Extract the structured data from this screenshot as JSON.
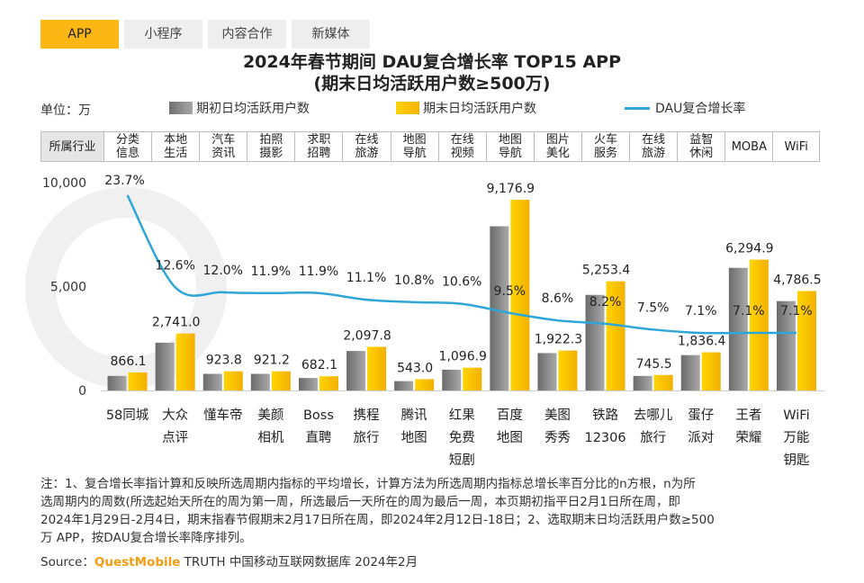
{
  "tabs": [
    "APP",
    "小程序",
    "内容合作",
    "新媒体"
  ],
  "title_line1": "2024年春节期间 DAU复合增长率 TOP15 APP",
  "title_line2": "(期末日均活跃用户数≥500万)",
  "unit": "单位：万",
  "industry_header": "所属行业",
  "colors": {
    "start": "#8a8a8a",
    "end": "#ffc000",
    "line": "#2ea6d8",
    "tab_active": "#fdb714"
  },
  "chart_data": {
    "type": "bar",
    "title": "2024年春节期间 DAU复合增长率 TOP15 APP",
    "ylim": [
      0,
      10000
    ],
    "yticks": [
      "0",
      "5,000",
      "10,000"
    ],
    "categories": [
      "58同城",
      "大众点评",
      "懂车帝",
      "美颜相机",
      "Boss直聘",
      "携程旅行",
      "腾讯地图",
      "红果免费短剧",
      "百度地图",
      "美图秀秀",
      "铁路12306",
      "去哪儿旅行",
      "蛋仔派对",
      "王者荣耀",
      "WiFi万能钥匙"
    ],
    "category_lines": [
      [
        "58同城"
      ],
      [
        "大众",
        "点评"
      ],
      [
        "懂车帝"
      ],
      [
        "美颜",
        "相机"
      ],
      [
        "Boss",
        "直聘"
      ],
      [
        "携程",
        "旅行"
      ],
      [
        "腾讯",
        "地图"
      ],
      [
        "红果",
        "免费",
        "短剧"
      ],
      [
        "百度",
        "地图"
      ],
      [
        "美图",
        "秀秀"
      ],
      [
        "铁路",
        "12306"
      ],
      [
        "去哪儿",
        "旅行"
      ],
      [
        "蛋仔",
        "派对"
      ],
      [
        "王者",
        "荣耀"
      ],
      [
        "WiFi",
        "万能",
        "钥匙"
      ]
    ],
    "industries": [
      "分类\n信息",
      "本地\n生活",
      "汽车\n资讯",
      "拍照\n摄影",
      "求职\n招聘",
      "在线\n旅游",
      "地图\n导航",
      "在线\n视频",
      "地图\n导航",
      "图片\n美化",
      "火车\n服务",
      "在线\n旅游",
      "益智\n休闲",
      "MOBA",
      "WiFi"
    ],
    "series": [
      {
        "name": "期初日均活跃用户数",
        "values": [
          700,
          2300,
          800,
          800,
          600,
          1900,
          450,
          1000,
          7900,
          1800,
          4600,
          700,
          1700,
          5900,
          4300
        ]
      },
      {
        "name": "期末日均活跃用户数",
        "values": [
          866.1,
          2741.0,
          923.8,
          921.2,
          682.1,
          2097.8,
          543.0,
          1096.9,
          9176.9,
          1922.3,
          5253.4,
          745.5,
          1836.4,
          6294.9,
          4786.5
        ]
      }
    ],
    "end_labels": [
      "866.1",
      "2,741.0",
      "923.8",
      "921.2",
      "682.1",
      "2,097.8",
      "543.0",
      "1,096.9",
      "9,176.9",
      "1,922.3",
      "5,253.4",
      "745.5",
      "1,836.4",
      "6,294.9",
      "4,786.5"
    ],
    "growth": {
      "name": "DAU复合增长率",
      "values": [
        23.7,
        12.6,
        12.0,
        11.9,
        11.9,
        11.1,
        10.8,
        10.6,
        9.5,
        8.6,
        8.2,
        7.5,
        7.1,
        7.1,
        7.1
      ],
      "labels": [
        "23.7%",
        "12.6%",
        "12.0%",
        "11.9%",
        "11.9%",
        "11.1%",
        "10.8%",
        "10.6%",
        "9.5%",
        "8.6%",
        "8.2%",
        "7.5%",
        "7.1%",
        "7.1%",
        "7.1%"
      ]
    }
  },
  "note_lines": [
    "注：1、复合增长率指计算和反映所选周期内指标的平均增长，计算方法为所选周期内指标总增长率百分比的n方根，n为所",
    "选周期内的周数(所选起始天所在的周为第一周，所选最后一天所在的周为最后一周，本页期初指平日2月1日所在周，即",
    "2024年1月29日-2月4日，期末指春节假期末2月17日所在周，即2024年2月12日-18日；2、选取期末日均活跃用户数≥500",
    "万 APP，按DAU复合增长率降序排列。"
  ],
  "source": {
    "label": "Source：",
    "brand": "QuestMobile",
    "rest": " TRUTH 中国移动互联网数据库 2024年2月"
  }
}
